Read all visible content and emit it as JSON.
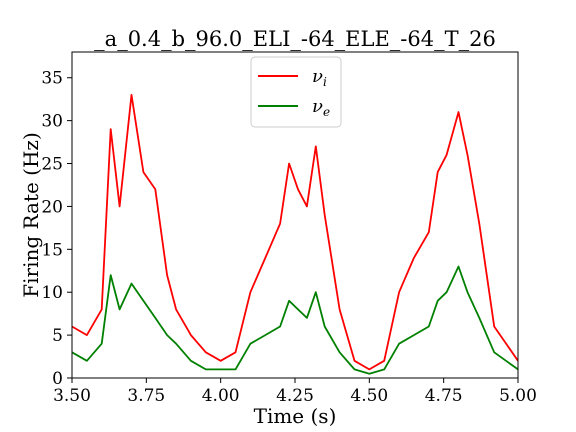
{
  "chart_data": {
    "type": "line",
    "title": "_a_0.4_b_96.0_ELI_-64_ELE_-64_T_26",
    "xlabel": "Time (s)",
    "ylabel": "Firing Rate (Hz)",
    "xlim": [
      3.5,
      5.0
    ],
    "ylim": [
      0,
      38
    ],
    "xticks": [
      3.5,
      3.75,
      4.0,
      4.25,
      4.5,
      4.75,
      5.0
    ],
    "xtick_labels": [
      "3.50",
      "3.75",
      "4.00",
      "4.25",
      "4.50",
      "4.75",
      "5.00"
    ],
    "yticks": [
      0,
      5,
      10,
      15,
      20,
      25,
      30,
      35
    ],
    "ytick_labels": [
      "0",
      "5",
      "10",
      "15",
      "20",
      "25",
      "30",
      "35"
    ],
    "grid": false,
    "legend_position": "top-center",
    "series": [
      {
        "name": "ν_i",
        "legend_label": "ν",
        "legend_sub": "i",
        "color": "#ff0000",
        "x": [
          3.5,
          3.55,
          3.6,
          3.63,
          3.66,
          3.7,
          3.74,
          3.78,
          3.82,
          3.85,
          3.9,
          3.95,
          4.0,
          4.05,
          4.1,
          4.15,
          4.2,
          4.23,
          4.26,
          4.29,
          4.32,
          4.35,
          4.4,
          4.45,
          4.5,
          4.55,
          4.6,
          4.65,
          4.7,
          4.73,
          4.76,
          4.8,
          4.83,
          4.87,
          4.92,
          5.0
        ],
        "values": [
          6,
          5,
          8,
          29,
          20,
          33,
          24,
          22,
          12,
          8,
          5,
          3,
          2,
          3,
          10,
          14,
          18,
          25,
          22,
          20,
          27,
          19,
          8,
          2,
          1,
          2,
          10,
          14,
          17,
          24,
          26,
          31,
          26,
          18,
          6,
          2
        ]
      },
      {
        "name": "ν_e",
        "legend_label": "ν",
        "legend_sub": "e",
        "color": "#008000",
        "x": [
          3.5,
          3.55,
          3.6,
          3.63,
          3.66,
          3.7,
          3.74,
          3.78,
          3.82,
          3.85,
          3.9,
          3.95,
          4.0,
          4.05,
          4.1,
          4.15,
          4.2,
          4.23,
          4.26,
          4.29,
          4.32,
          4.35,
          4.4,
          4.45,
          4.5,
          4.55,
          4.6,
          4.65,
          4.7,
          4.73,
          4.76,
          4.8,
          4.83,
          4.87,
          4.92,
          5.0
        ],
        "values": [
          3,
          2,
          4,
          12,
          8,
          11,
          9,
          7,
          5,
          4,
          2,
          1,
          1,
          1,
          4,
          5,
          6,
          9,
          8,
          7,
          10,
          6,
          3,
          1,
          0.5,
          1,
          4,
          5,
          6,
          9,
          10,
          13,
          10,
          7,
          3,
          1
        ]
      }
    ]
  }
}
